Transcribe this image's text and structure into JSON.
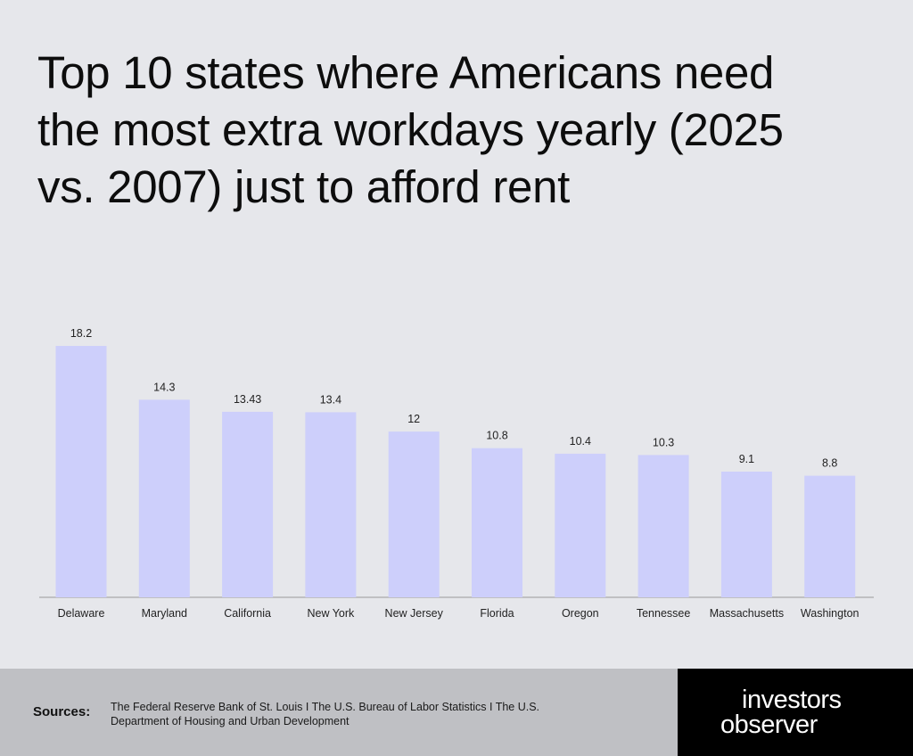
{
  "title": "Top 10 states where Americans need the most extra workdays yearly (2025 vs. 2007) just to afford rent",
  "chart_data": {
    "type": "bar",
    "categories": [
      "Delaware",
      "Maryland",
      "California",
      "New York",
      "New Jersey",
      "Florida",
      "Oregon",
      "Tennessee",
      "Massachusetts",
      "Washington"
    ],
    "values": [
      18.2,
      14.3,
      13.43,
      13.4,
      12,
      10.8,
      10.4,
      10.3,
      9.1,
      8.8
    ],
    "value_labels": [
      "18.2",
      "14.3",
      "13.43",
      "13.4",
      "12",
      "10.8",
      "10.4",
      "10.3",
      "9.1",
      "8.8"
    ],
    "ylim": [
      0,
      18.2
    ],
    "grid": false,
    "bar_color": "#cdcffb",
    "legend": "none"
  },
  "footer": {
    "sources_label": "Sources:",
    "sources_text": "The Federal Reserve Bank of St. Louis  I  The U.S. Bureau of Labor Statistics  I  The U.S. Department of Housing and Urban Development",
    "logo_line1": "investors",
    "logo_line2": "observer"
  },
  "colors": {
    "background": "#e6e7eb",
    "bar": "#cdcffb",
    "footer_gray": "#bfc0c4",
    "logo_bg": "#000000"
  }
}
